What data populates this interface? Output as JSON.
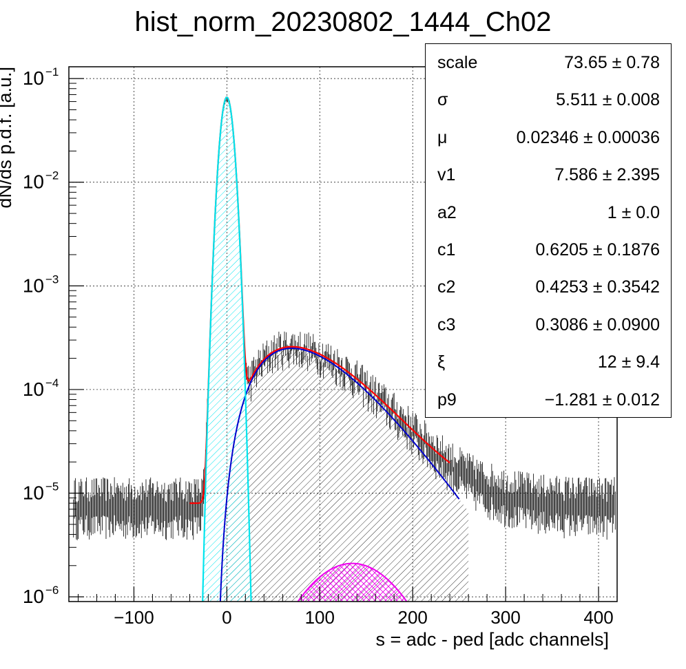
{
  "chart_data": {
    "type": "histogram",
    "title": "hist_norm_20230802_1444_Ch02",
    "xlabel": "s = adc - ped [adc channels]",
    "ylabel": "dN/ds p.d.f. [a.u.]",
    "xlim": [
      -170,
      420
    ],
    "ylim": [
      9e-07,
      0.13
    ],
    "yscale": "log",
    "grid": true,
    "x_ticks": [
      -100,
      0,
      100,
      200,
      300,
      400
    ],
    "y_ticks": [
      {
        "value": 0.1,
        "base": "10",
        "exp": "−1"
      },
      {
        "value": 0.01,
        "base": "10",
        "exp": "−2"
      },
      {
        "value": 0.001,
        "base": "10",
        "exp": "−3"
      },
      {
        "value": 0.0001,
        "base": "10",
        "exp": "−4"
      },
      {
        "value": 1e-05,
        "base": "10",
        "exp": "−5"
      },
      {
        "value": 1e-06,
        "base": "10",
        "exp": "−6"
      }
    ],
    "pedestal": {
      "center": 0,
      "sigma": 5.511,
      "peak": 0.066
    },
    "curves": [
      {
        "id": "total-fit",
        "color": "#ff0000"
      },
      {
        "id": "pedestal",
        "color": "#00e5ee"
      },
      {
        "id": "one-pe",
        "color": "#0000cc"
      },
      {
        "id": "two-pe",
        "color": "#ee00ee"
      }
    ],
    "one_pe": {
      "peak_x": 70,
      "peak_y": 0.00025
    },
    "two_pe": {
      "peak_x": 135,
      "peak_y": 2.1e-06
    },
    "data_color": "#000000",
    "stats_box": [
      {
        "name": "scale",
        "value": "73.65 ± 0.78"
      },
      {
        "name": "σ",
        "value": "5.511 ± 0.008"
      },
      {
        "name": "μ",
        "value": "0.02346 ± 0.00036"
      },
      {
        "name": "v1",
        "value": "7.586 ± 2.395"
      },
      {
        "name": "a2",
        "value": "1 ± 0.0"
      },
      {
        "name": "c1",
        "value": "0.6205 ± 0.1876"
      },
      {
        "name": "c2",
        "value": "0.4253 ± 0.3542"
      },
      {
        "name": "c3",
        "value": "0.3086 ± 0.0900"
      },
      {
        "name": "ξ",
        "value": "12 ± 9.4"
      },
      {
        "name": "p9",
        "value": "−1.281 ± 0.012"
      }
    ]
  }
}
